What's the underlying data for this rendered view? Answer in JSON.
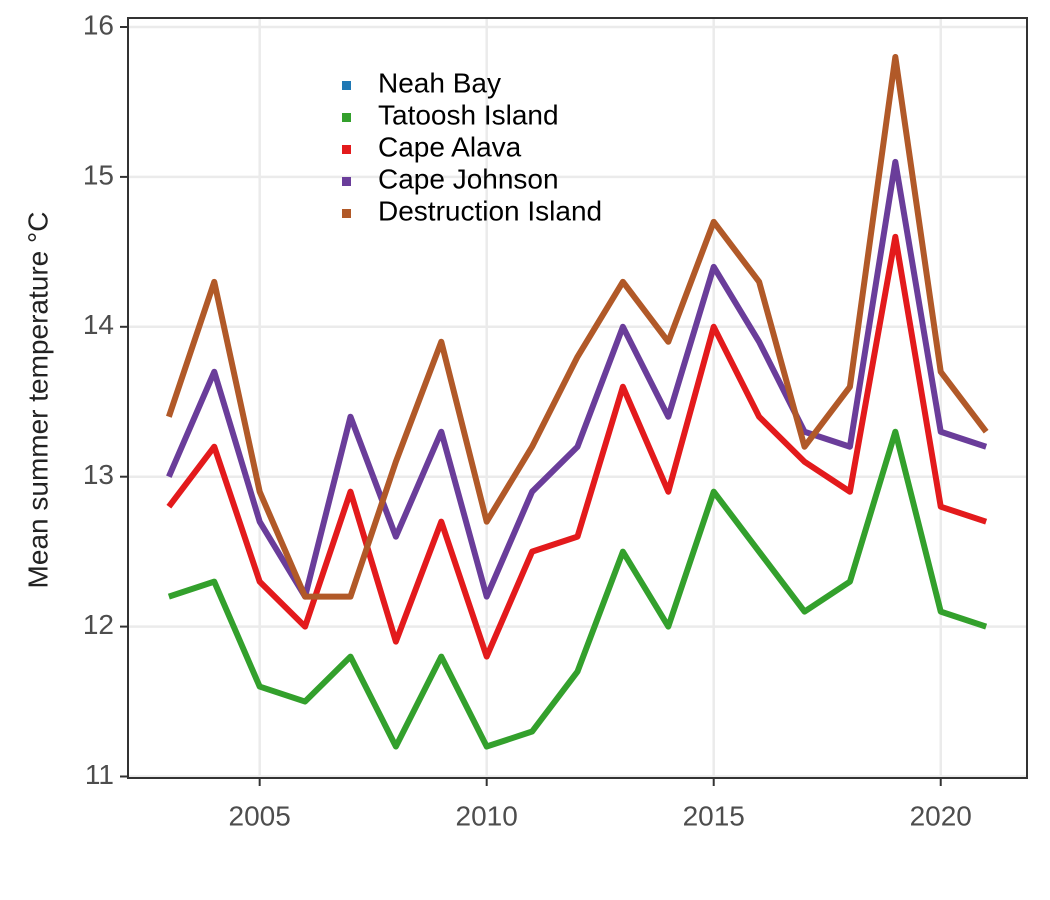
{
  "chart_data": {
    "type": "line",
    "y_label": "Mean summer temperature °C",
    "x": [
      2003,
      2004,
      2005,
      2006,
      2007,
      2008,
      2009,
      2010,
      2011,
      2012,
      2013,
      2014,
      2015,
      2016,
      2017,
      2018,
      2019,
      2020,
      2021
    ],
    "series": [
      {
        "name": "Neah Bay",
        "color": "#1f78b4",
        "values": [
          null,
          null,
          null,
          null,
          null,
          null,
          null,
          null,
          null,
          null,
          null,
          null,
          null,
          null,
          null,
          null,
          null,
          null,
          null
        ]
      },
      {
        "name": "Tatoosh Island",
        "color": "#33a02c",
        "values": [
          12.2,
          12.3,
          11.6,
          11.5,
          11.8,
          11.2,
          11.8,
          11.2,
          11.3,
          11.7,
          12.5,
          12.0,
          12.9,
          12.5,
          12.1,
          12.3,
          13.3,
          12.1,
          12.0
        ]
      },
      {
        "name": "Cape Alava",
        "color": "#e31a1c",
        "values": [
          12.8,
          13.2,
          12.3,
          12.0,
          12.9,
          11.9,
          12.7,
          11.8,
          12.5,
          12.6,
          13.6,
          12.9,
          14.0,
          13.4,
          13.1,
          12.9,
          14.6,
          12.8,
          12.7
        ]
      },
      {
        "name": "Cape Johnson",
        "color": "#6a3d9a",
        "values": [
          13.0,
          13.7,
          12.7,
          12.2,
          13.4,
          12.6,
          13.3,
          12.2,
          12.9,
          13.2,
          14.0,
          13.4,
          14.4,
          13.9,
          13.3,
          13.2,
          15.1,
          13.3,
          13.2
        ]
      },
      {
        "name": "Destruction Island",
        "color": "#b15928",
        "values": [
          13.4,
          14.3,
          12.9,
          12.2,
          12.2,
          13.1,
          13.9,
          12.7,
          13.2,
          13.8,
          14.3,
          13.9,
          14.7,
          14.3,
          13.2,
          13.6,
          15.8,
          13.7,
          13.3
        ]
      }
    ],
    "xlim": [
      2002.1,
      2021.9
    ],
    "xticks": [
      2005,
      2010,
      2015,
      2020
    ],
    "ylim": [
      10.99,
      16.06
    ],
    "yticks": [
      11,
      12,
      13,
      14,
      15,
      16
    ],
    "grid": true,
    "legend": "top-left"
  }
}
